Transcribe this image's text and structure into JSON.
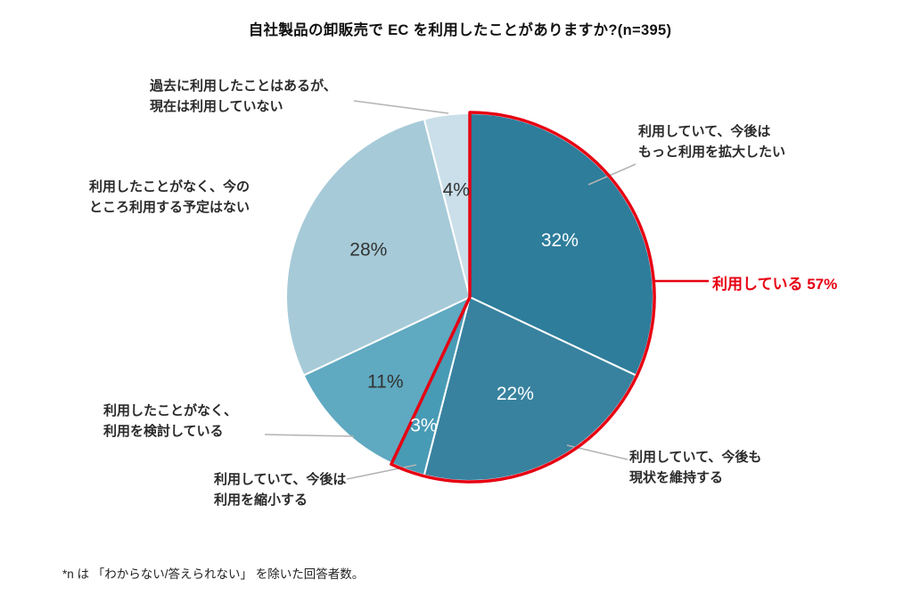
{
  "chart_data": {
    "type": "pie",
    "title": "自社製品の卸販売で EC を利用したことがありますか?(n=395)",
    "n": 395,
    "unit": "%",
    "start_angle_deg": 0,
    "direction": "clockwise",
    "grid": false,
    "legend_position": "callouts",
    "slices": [
      {
        "label": "利用していて、今後はもっと利用を拡大したい",
        "label_lines": [
          "利用していて、今後は",
          "もっと利用を拡大したい"
        ],
        "value": 32,
        "pct_label": "32%",
        "color": "#2D7D9B",
        "pct_color": "#FFFFFF",
        "label_r": 0.58
      },
      {
        "label": "利用していて、今後も現状を維持する",
        "label_lines": [
          "利用していて、今後も",
          "現状を維持する"
        ],
        "value": 22,
        "pct_label": "22%",
        "color": "#38829F",
        "pct_color": "#FFFFFF",
        "label_r": 0.58
      },
      {
        "label": "利用していて、今後は利用を縮小する",
        "label_lines": [
          "利用していて、今後は",
          "利用を縮小する"
        ],
        "value": 3,
        "pct_label": "3%",
        "color": "#489BB5",
        "pct_color": "#FFFFFF",
        "label_r": 0.74
      },
      {
        "label": "利用したことがなく、利用を検討している",
        "label_lines": [
          "利用したことがなく、",
          "利用を検討している"
        ],
        "value": 11,
        "pct_label": "11%",
        "color": "#5FA9C1",
        "pct_color": "#333333",
        "label_r": 0.65
      },
      {
        "label": "利用したことがなく、今のところ利用する予定はない",
        "label_lines": [
          "利用したことがなく、今の",
          "ところ利用する予定はない"
        ],
        "value": 28,
        "pct_label": "28%",
        "color": "#A6CAD8",
        "pct_color": "#333333",
        "label_r": 0.61
      },
      {
        "label": "過去に利用したことはあるが、現在は利用していない",
        "label_lines": [
          "過去に利用したことはあるが、",
          "現在は利用していない"
        ],
        "value": 4,
        "pct_label": "4%",
        "color": "#CADFE9",
        "pct_color": "#333333",
        "label_r": 0.59
      }
    ],
    "highlight": {
      "label": "利用している 57%",
      "value": 57,
      "covers_slices": 3,
      "color": "#E60012"
    }
  },
  "footnote": "*n は 「わからない/答えられない」 を除いた回答者数。"
}
